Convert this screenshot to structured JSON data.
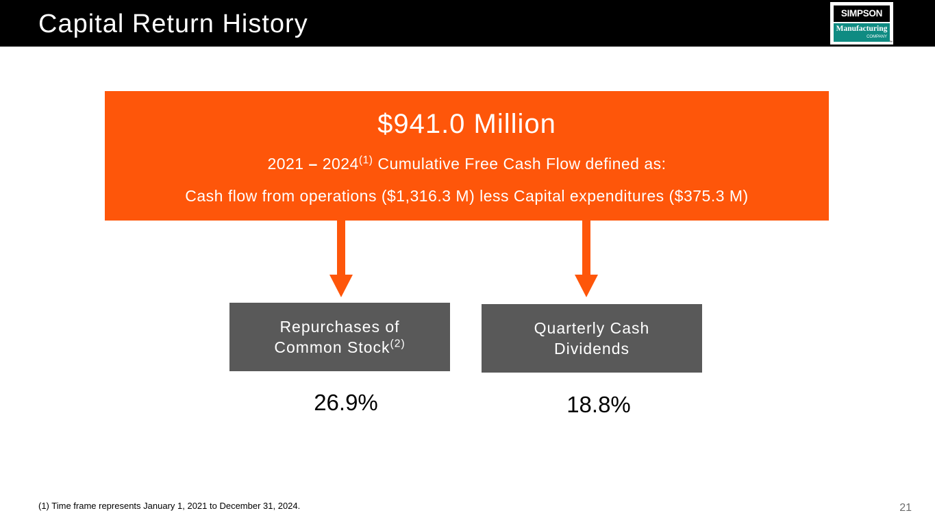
{
  "header": {
    "title": "Capital Return History"
  },
  "logo": {
    "line1": "SIMPSON",
    "line2": "Manufacturing",
    "line3": "COMPANY",
    "trademark": "™"
  },
  "summary": {
    "amount": "$941.0 Million",
    "period_start": "2021",
    "period_dash": "–",
    "period_end": "2024",
    "period_note": "(1)",
    "period_text": "Cumulative Free Cash Flow defined as:",
    "definition": "Cash flow from operations ($1,316.3 M) less Capital expenditures ($375.3 M)"
  },
  "allocations": [
    {
      "label_line1": "Repurchases of",
      "label_line2": "Common Stock",
      "label_note": "(2)",
      "percent": "26.9%"
    },
    {
      "label_line1": "Quarterly Cash",
      "label_line2": "Dividends",
      "label_note": "",
      "percent": "18.8%"
    }
  ],
  "footnote": "(1)  Time frame represents January 1, 2021 to December 31, 2024.",
  "page_number": "21",
  "colors": {
    "accent_orange": "#fe560a",
    "box_gray": "#595959",
    "header_black": "#000000",
    "logo_teal": "#0f8b82"
  }
}
